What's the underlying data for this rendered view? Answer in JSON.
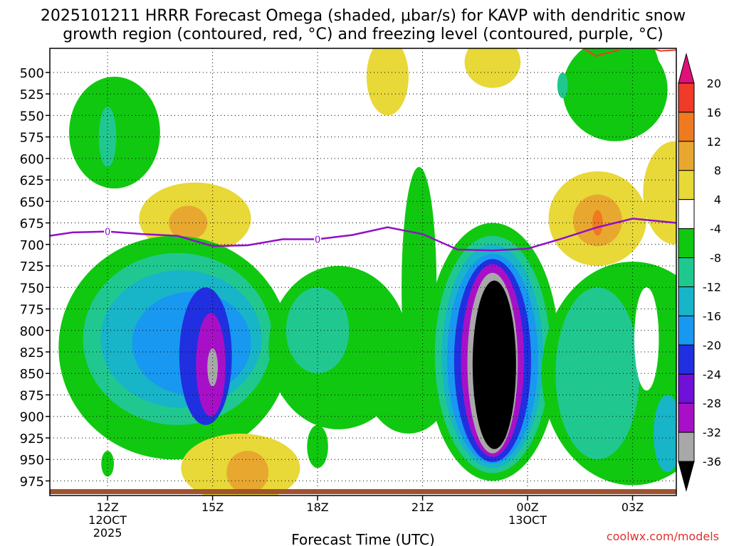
{
  "chart_data": {
    "type": "heatmap",
    "title_line1": "2025101211 HRRR Forecast Omega (shaded, μbar/s) for KAVP with dendritic snow",
    "title_line2": "growth region (contoured, red, °C) and freezing level (contoured, purple, °C)",
    "xlabel": "Forecast Time (UTC)",
    "watermark": "coolwx.com/models",
    "x_range_hours": [
      10.35,
      28.25
    ],
    "y_range_hpa": [
      472,
      992
    ],
    "x_ticks": [
      {
        "hour": 12,
        "lines": [
          "12Z",
          "12OCT",
          "2025"
        ]
      },
      {
        "hour": 15,
        "lines": [
          "15Z"
        ]
      },
      {
        "hour": 18,
        "lines": [
          "18Z"
        ]
      },
      {
        "hour": 21,
        "lines": [
          "21Z"
        ]
      },
      {
        "hour": 24,
        "lines": [
          "00Z",
          "13OCT"
        ]
      },
      {
        "hour": 27,
        "lines": [
          "03Z"
        ]
      }
    ],
    "y_ticks": [
      500,
      525,
      550,
      575,
      600,
      625,
      650,
      675,
      700,
      725,
      750,
      775,
      800,
      825,
      850,
      875,
      900,
      925,
      950,
      975
    ],
    "colorbar": {
      "labels": [
        "20",
        "16",
        "12",
        "8",
        "4",
        "-4",
        "-8",
        "-12",
        "-16",
        "-20",
        "-24",
        "-28",
        "-32",
        "-36"
      ],
      "colors": [
        "#e0107a",
        "#f03a2a",
        "#f07a20",
        "#e8a830",
        "#e8d838",
        "#ffffff",
        "#10c810",
        "#20c890",
        "#18b4c8",
        "#1898f0",
        "#2030e0",
        "#7010d8",
        "#a810c8",
        "#a8a8a8",
        "#000000"
      ]
    },
    "freezing_level_hpa": [
      {
        "hour": 10.35,
        "hpa": 690
      },
      {
        "hour": 11,
        "hpa": 686
      },
      {
        "hour": 12,
        "hpa": 685
      },
      {
        "hour": 13,
        "hpa": 688
      },
      {
        "hour": 14,
        "hpa": 690
      },
      {
        "hour": 15,
        "hpa": 702
      },
      {
        "hour": 16,
        "hpa": 701
      },
      {
        "hour": 17,
        "hpa": 694
      },
      {
        "hour": 18,
        "hpa": 694
      },
      {
        "hour": 19,
        "hpa": 689
      },
      {
        "hour": 20,
        "hpa": 680
      },
      {
        "hour": 21,
        "hpa": 688
      },
      {
        "hour": 22,
        "hpa": 706
      },
      {
        "hour": 23,
        "hpa": 707
      },
      {
        "hour": 24,
        "hpa": 705
      },
      {
        "hour": 25,
        "hpa": 693
      },
      {
        "hour": 26,
        "hpa": 680
      },
      {
        "hour": 27,
        "hpa": 670
      },
      {
        "hour": 28.25,
        "hpa": 675
      }
    ],
    "freezing_level_labels": [
      "0",
      "0"
    ],
    "features": [
      {
        "name": "omega-green-top-left",
        "color": "#10c810",
        "cx": 12.2,
        "cy": 570,
        "rx": 1.3,
        "ry": 65
      },
      {
        "name": "omega-teal-top-left",
        "color": "#20c890",
        "cx": 12.0,
        "cy": 575,
        "rx": 0.25,
        "ry": 35
      },
      {
        "name": "omega-yellow-left",
        "color": "#e8d838",
        "cx": 14.5,
        "cy": 670,
        "rx": 1.6,
        "ry": 42
      },
      {
        "name": "omega-orange-left",
        "color": "#e8a830",
        "cx": 14.3,
        "cy": 675,
        "rx": 0.55,
        "ry": 20
      },
      {
        "name": "omega-green-left",
        "color": "#10c810",
        "cx": 13.9,
        "cy": 820,
        "rx": 3.3,
        "ry": 130
      },
      {
        "name": "omega-teal-left",
        "color": "#20c890",
        "cx": 14.0,
        "cy": 810,
        "rx": 2.7,
        "ry": 100
      },
      {
        "name": "omega-cyan-left",
        "color": "#18b4c8",
        "cx": 14.1,
        "cy": 810,
        "rx": 2.3,
        "ry": 80
      },
      {
        "name": "omega-blue-left",
        "color": "#1898f0",
        "cx": 14.4,
        "cy": 815,
        "rx": 1.7,
        "ry": 60
      },
      {
        "name": "omega-darkblue-left",
        "color": "#2030e0",
        "cx": 14.8,
        "cy": 830,
        "rx": 0.75,
        "ry": 80
      },
      {
        "name": "omega-purple-left",
        "color": "#a810c8",
        "cx": 14.95,
        "cy": 840,
        "rx": 0.42,
        "ry": 60
      },
      {
        "name": "omega-gray-left",
        "color": "#a8a8a8",
        "cx": 15.0,
        "cy": 843,
        "rx": 0.15,
        "ry": 22
      },
      {
        "name": "omega-yellow-bottom-left",
        "color": "#e8d838",
        "cx": 15.8,
        "cy": 960,
        "rx": 1.7,
        "ry": 40
      },
      {
        "name": "omega-orange-bottom-left",
        "color": "#e8a830",
        "cx": 16.0,
        "cy": 965,
        "rx": 0.6,
        "ry": 25
      },
      {
        "name": "omega-green-center-left",
        "color": "#10c810",
        "cx": 18.6,
        "cy": 820,
        "rx": 2.0,
        "ry": 95
      },
      {
        "name": "omega-teal-center-left",
        "color": "#20c890",
        "cx": 18.0,
        "cy": 800,
        "rx": 0.9,
        "ry": 50
      },
      {
        "name": "omega-green-center-plume",
        "color": "#10c810",
        "cx": 20.9,
        "cy": 750,
        "rx": 0.5,
        "ry": 140
      },
      {
        "name": "omega-green-center-base",
        "color": "#10c810",
        "cx": 20.6,
        "cy": 850,
        "rx": 1.3,
        "ry": 70
      },
      {
        "name": "omega-yellow-top-center",
        "color": "#e8d838",
        "cx": 20.0,
        "cy": 505,
        "rx": 0.6,
        "ry": 45
      },
      {
        "name": "omega-yellow-top-right",
        "color": "#e8d838",
        "cx": 23.0,
        "cy": 488,
        "rx": 0.8,
        "ry": 30
      },
      {
        "name": "omega-green-main",
        "color": "#10c810",
        "cx": 23.0,
        "cy": 825,
        "rx": 1.9,
        "ry": 150
      },
      {
        "name": "omega-teal-main",
        "color": "#20c890",
        "cx": 23.0,
        "cy": 828,
        "rx": 1.65,
        "ry": 138
      },
      {
        "name": "omega-cyan-main",
        "color": "#18b4c8",
        "cx": 23.0,
        "cy": 830,
        "rx": 1.45,
        "ry": 130
      },
      {
        "name": "omega-blue-main",
        "color": "#1898f0",
        "cx": 23.0,
        "cy": 833,
        "rx": 1.3,
        "ry": 122
      },
      {
        "name": "omega-darkblue-main",
        "color": "#2030e0",
        "cx": 23.0,
        "cy": 835,
        "rx": 1.1,
        "ry": 118
      },
      {
        "name": "omega-purple-main",
        "color": "#a810c8",
        "cx": 23.0,
        "cy": 835,
        "rx": 0.9,
        "ry": 112
      },
      {
        "name": "omega-gray-main",
        "color": "#a8a8a8",
        "cx": 23.0,
        "cy": 838,
        "rx": 0.72,
        "ry": 105
      },
      {
        "name": "omega-black-main",
        "color": "#000000",
        "cx": 23.05,
        "cy": 840,
        "rx": 0.62,
        "ry": 98
      },
      {
        "name": "omega-yellow-right",
        "color": "#e8d838",
        "cx": 26.0,
        "cy": 670,
        "rx": 1.4,
        "ry": 55
      },
      {
        "name": "omega-orange-right",
        "color": "#e8a830",
        "cx": 26.0,
        "cy": 672,
        "rx": 0.7,
        "ry": 30
      },
      {
        "name": "omega-red-right",
        "color": "#f07a20",
        "cx": 26.0,
        "cy": 675,
        "rx": 0.15,
        "ry": 15
      },
      {
        "name": "omega-green-top-right",
        "color": "#10c810",
        "cx": 26.5,
        "cy": 520,
        "rx": 1.5,
        "ry": 60
      },
      {
        "name": "omega-teal-top-right",
        "color": "#20c890",
        "cx": 25.0,
        "cy": 515,
        "rx": 0.15,
        "ry": 15
      },
      {
        "name": "omega-green-far-top-right",
        "color": "#10c810",
        "cx": 27.4,
        "cy": 510,
        "rx": 0.4,
        "ry": 45
      },
      {
        "name": "omega-yellow-far-right",
        "color": "#e8d838",
        "cx": 28.2,
        "cy": 640,
        "rx": 0.9,
        "ry": 60
      },
      {
        "name": "omega-green-right",
        "color": "#10c810",
        "cx": 27.0,
        "cy": 850,
        "rx": 2.6,
        "ry": 130
      },
      {
        "name": "omega-teal-right",
        "color": "#20c890",
        "cx": 26.0,
        "cy": 850,
        "rx": 1.2,
        "ry": 100
      },
      {
        "name": "omega-cyan-right",
        "color": "#18b4c8",
        "cx": 28.0,
        "cy": 920,
        "rx": 0.4,
        "ry": 45
      },
      {
        "name": "omega-white-right",
        "color": "#ffffff",
        "cx": 27.4,
        "cy": 810,
        "rx": 0.35,
        "ry": 60
      },
      {
        "name": "omega-green-small-left",
        "color": "#10c810",
        "cx": 12.0,
        "cy": 955,
        "rx": 0.18,
        "ry": 15
      },
      {
        "name": "omega-green-small-center",
        "color": "#10c810",
        "cx": 18.0,
        "cy": 935,
        "rx": 0.3,
        "ry": 25
      }
    ]
  }
}
